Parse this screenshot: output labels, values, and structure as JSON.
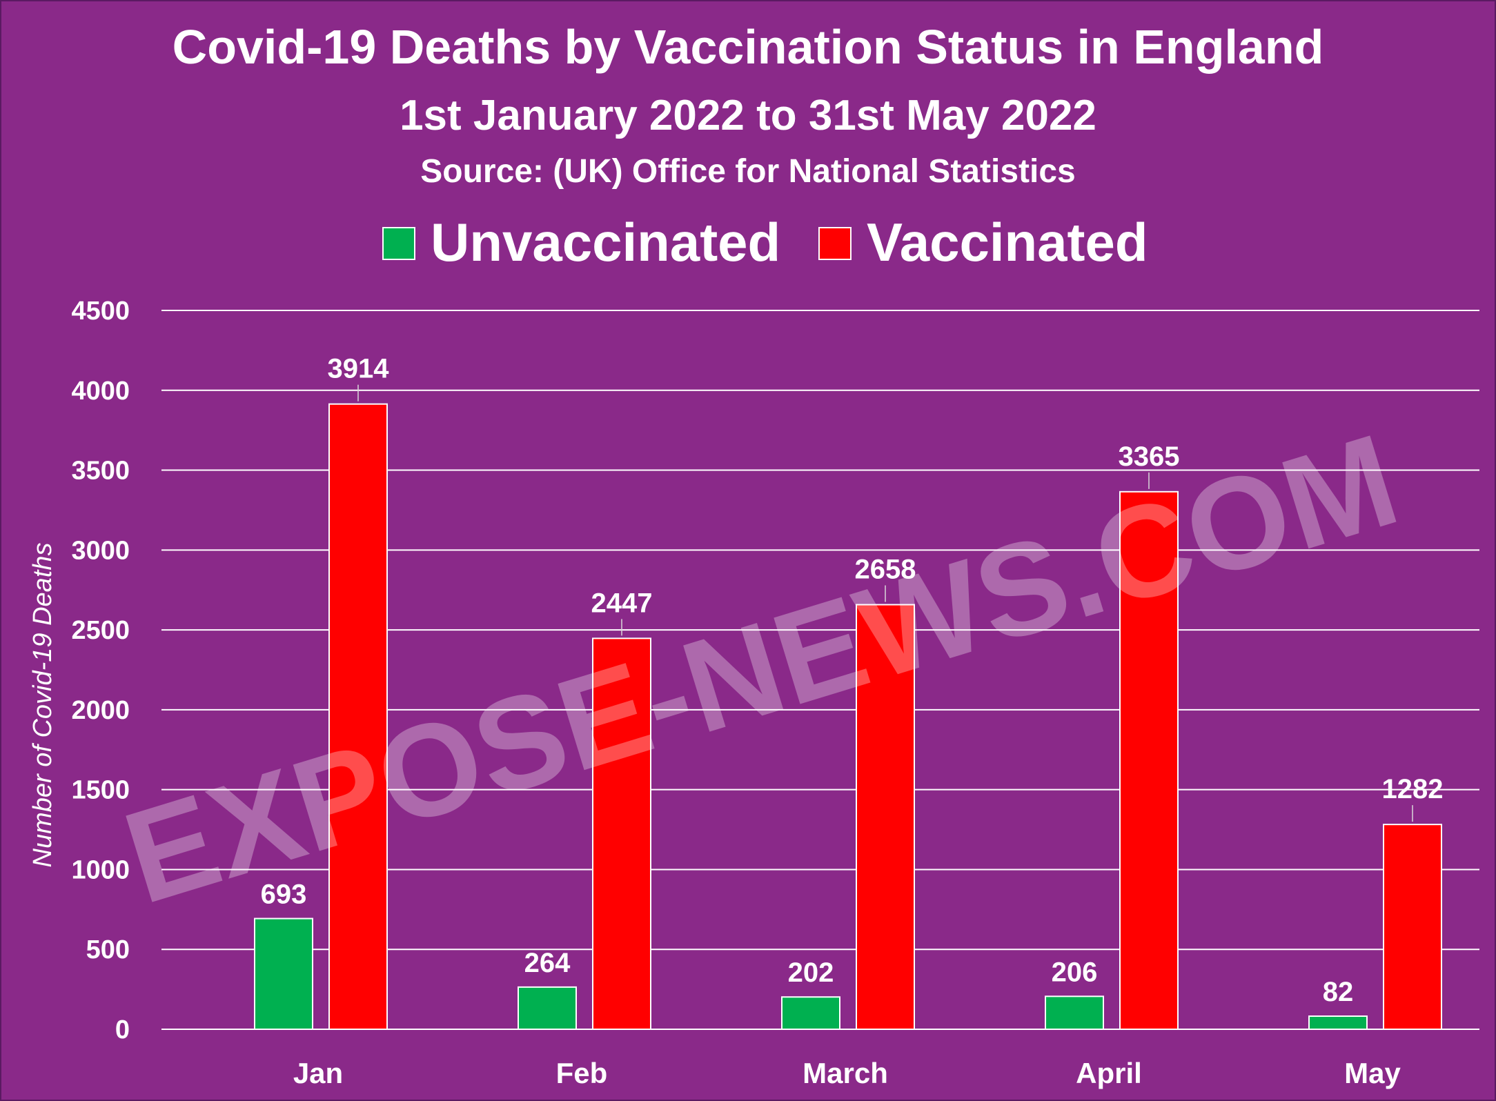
{
  "chart_data": {
    "type": "bar",
    "title": "Covid-19 Deaths by Vaccination Status in England",
    "subtitle": "1st January 2022 to 31st May 2022",
    "source": "Source:  (UK) Office for National Statistics",
    "ylabel": "Number of Covid-19 Deaths",
    "xlabel": "",
    "categories": [
      "Jan",
      "Feb",
      "March",
      "April",
      "May"
    ],
    "series": [
      {
        "name": "Unvaccinated",
        "color": "#00b050",
        "values": [
          693,
          264,
          202,
          206,
          82
        ]
      },
      {
        "name": "Vaccinated",
        "color": "#ff0000",
        "values": [
          3914,
          2447,
          2658,
          3365,
          1282
        ]
      }
    ],
    "ylim": [
      0,
      4500
    ],
    "yticks": [
      "0",
      "500",
      "1000",
      "1500",
      "2000",
      "2500",
      "3000",
      "3500",
      "4000",
      "4500"
    ],
    "grid": true,
    "legend_position": "top",
    "watermark": "EXPOSE-NEWS.COM",
    "colors": {
      "background": "#8a2989",
      "text": "#ffffff",
      "gridline": "#ffffff"
    }
  }
}
